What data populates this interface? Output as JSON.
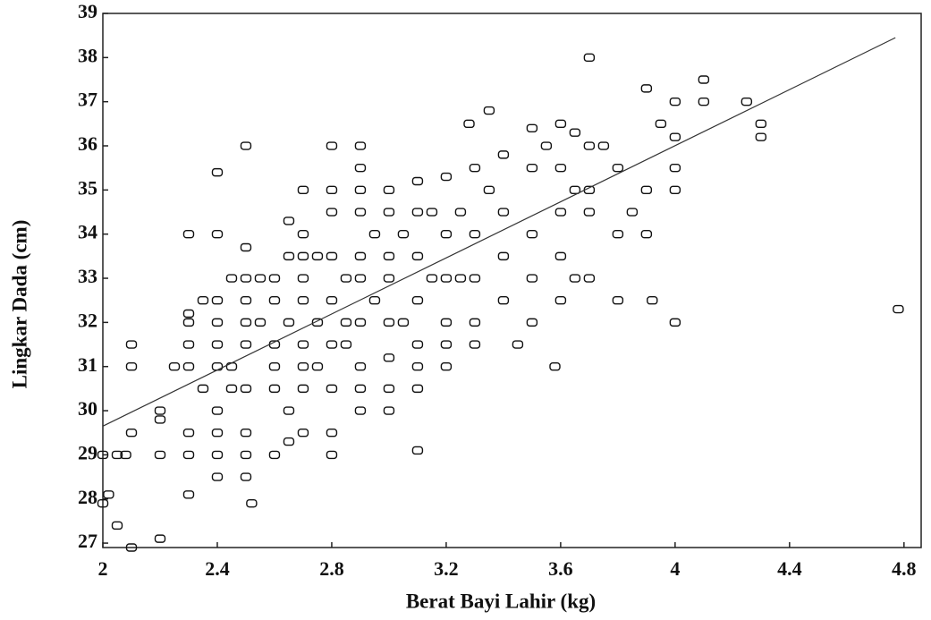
{
  "chart_data": {
    "type": "scatter",
    "x_label": "Berat Bayi Lahir (kg)",
    "y_label": "Lingkar Dada (cm)",
    "x": [
      2,
      2.02,
      2,
      2.05,
      2.1,
      2.2,
      2.05,
      2.08,
      2.1,
      2.1,
      2.1,
      2.2,
      2.2,
      2.2,
      2.25,
      2.3,
      2.3,
      2.3,
      2.3,
      2.3,
      2.3,
      2.3,
      2.3,
      2.35,
      2.35,
      2.4,
      2.4,
      2.4,
      2.4,
      2.4,
      2.4,
      2.4,
      2.4,
      2.4,
      2.4,
      2.45,
      2.45,
      2.45,
      2.5,
      2.5,
      2.5,
      2.5,
      2.5,
      2.5,
      2.5,
      2.5,
      2.5,
      2.5,
      2.52,
      2.55,
      2.55,
      2.6,
      2.6,
      2.6,
      2.6,
      2.6,
      2.6,
      2.65,
      2.65,
      2.65,
      2.65,
      2.65,
      2.7,
      2.7,
      2.7,
      2.7,
      2.7,
      2.7,
      2.7,
      2.7,
      2.7,
      2.75,
      2.75,
      2.75,
      2.8,
      2.8,
      2.8,
      2.8,
      2.8,
      2.8,
      2.8,
      2.8,
      2.8,
      2.85,
      2.85,
      2.85,
      2.9,
      2.9,
      2.9,
      2.9,
      2.9,
      2.9,
      2.9,
      2.9,
      2.9,
      2.9,
      2.95,
      2.95,
      3,
      3,
      3,
      3,
      3,
      3,
      3,
      3,
      3.05,
      3.05,
      3.1,
      3.1,
      3.1,
      3.1,
      3.1,
      3.1,
      3.1,
      3.1,
      3.15,
      3.15,
      3.2,
      3.2,
      3.2,
      3.2,
      3.2,
      3.2,
      3.25,
      3.25,
      3.28,
      3.3,
      3.3,
      3.3,
      3.3,
      3.3,
      3.35,
      3.35,
      3.4,
      3.4,
      3.4,
      3.4,
      3.45,
      3.5,
      3.5,
      3.5,
      3.5,
      3.5,
      3.55,
      3.58,
      3.6,
      3.6,
      3.6,
      3.6,
      3.6,
      3.65,
      3.65,
      3.65,
      3.7,
      3.7,
      3.7,
      3.7,
      3.7,
      3.75,
      3.8,
      3.8,
      3.8,
      3.85,
      3.9,
      3.9,
      3.9,
      3.92,
      3.95,
      4,
      4,
      4,
      4,
      4,
      4.1,
      4.1,
      4.25,
      4.3,
      4.3,
      4.78
    ],
    "y": [
      29,
      28.1,
      27.9,
      27.4,
      26.9,
      27.1,
      29,
      29,
      29.5,
      31,
      31.5,
      29,
      30,
      29.8,
      31,
      31,
      31.5,
      32,
      32.2,
      34,
      29,
      28.1,
      29.5,
      32.5,
      30.5,
      34,
      35.4,
      32.5,
      32,
      31.5,
      31,
      30,
      29.5,
      29,
      28.5,
      33,
      31,
      30.5,
      36,
      33.7,
      33,
      32.5,
      32,
      31.5,
      30.5,
      29.5,
      29,
      28.5,
      27.9,
      33,
      32,
      33,
      32.5,
      31.5,
      31,
      30.5,
      29,
      34.3,
      33.5,
      32,
      30,
      29.3,
      35,
      34,
      33.5,
      33,
      32.5,
      31.5,
      31,
      30.5,
      29.5,
      33.5,
      32,
      31,
      36,
      35,
      34.5,
      33.5,
      32.5,
      31.5,
      30.5,
      29.5,
      29,
      33,
      32,
      31.5,
      36,
      35.5,
      35,
      34.5,
      33.5,
      33,
      32,
      31,
      30.5,
      30,
      34,
      32.5,
      35,
      34.5,
      33.5,
      33,
      32,
      31.2,
      30.5,
      30,
      34,
      32,
      35.2,
      34.5,
      33.5,
      32.5,
      31.5,
      31,
      30.5,
      29.1,
      34.5,
      33,
      35.3,
      34,
      33,
      32,
      31.5,
      31,
      34.5,
      33,
      36.5,
      35.5,
      34,
      33,
      32,
      31.5,
      36.8,
      35,
      35.8,
      34.5,
      33.5,
      32.5,
      31.5,
      36.4,
      35.5,
      34,
      33,
      32,
      36,
      31,
      36.5,
      35.5,
      34.5,
      33.5,
      32.5,
      36.3,
      35,
      33,
      38,
      36,
      35,
      34.5,
      33,
      36,
      35.5,
      34,
      32.5,
      34.5,
      37.3,
      35,
      34,
      32.5,
      36.5,
      37,
      36.2,
      35.5,
      35,
      32,
      37.5,
      37,
      37,
      36.5,
      36.2,
      32.3
    ],
    "trend_line": {
      "x": [
        2,
        4.77
      ],
      "y": [
        29.65,
        38.45
      ]
    },
    "xlim": [
      2,
      4.86
    ],
    "ylim": [
      26.9,
      39
    ],
    "xticks": [
      2,
      2.4,
      2.8,
      3.2,
      3.6,
      4,
      4.4,
      4.8
    ],
    "yticks": [
      27,
      28,
      29,
      30,
      31,
      32,
      33,
      34,
      35,
      36,
      37,
      38,
      39
    ],
    "color": "#111111"
  }
}
